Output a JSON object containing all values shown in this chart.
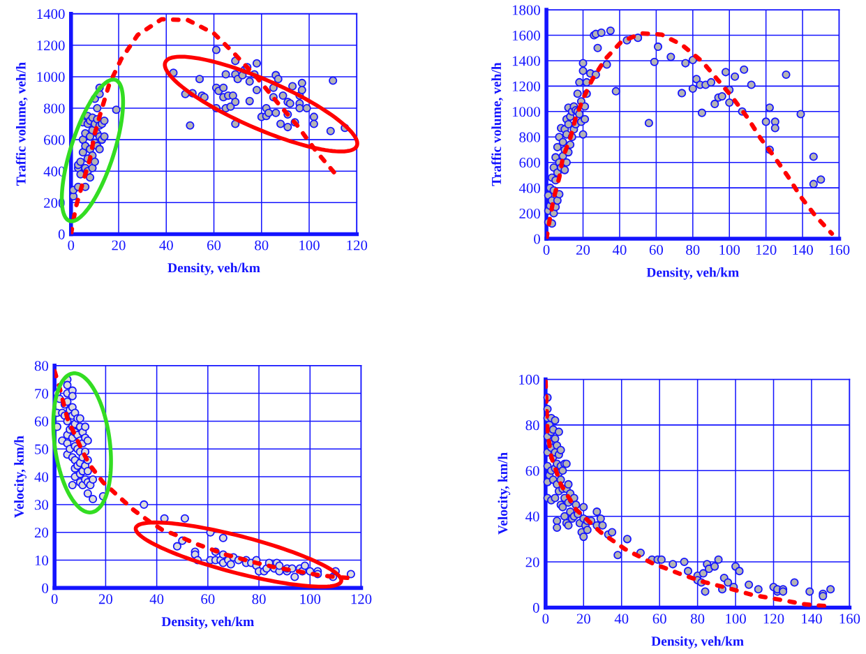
{
  "chart_data": [
    {
      "type": "scatter",
      "xlabel": "Density, veh/km",
      "ylabel": "Traffic volume, veh/h",
      "xlim": [
        0,
        120
      ],
      "ylim": [
        0,
        1400
      ],
      "xticks": [
        0,
        20,
        40,
        60,
        80,
        100,
        120
      ],
      "yticks": [
        0,
        200,
        400,
        600,
        800,
        1000,
        1200,
        1400
      ],
      "grid": true,
      "series": [
        {
          "marker": "circle",
          "color": "#b4b4b4",
          "x": [
            1,
            1,
            3,
            3,
            3,
            4,
            4,
            5,
            5,
            5,
            6,
            6,
            6,
            6,
            7,
            7,
            7,
            7,
            8,
            8,
            8,
            8,
            9,
            9,
            9,
            9,
            10,
            10,
            10,
            10,
            11,
            11,
            11,
            11,
            12,
            12,
            12,
            12,
            12,
            13,
            13,
            14,
            14,
            19,
            43,
            48,
            50,
            51,
            54,
            55,
            56,
            61,
            61,
            61,
            62,
            64,
            64,
            65,
            65,
            66,
            67,
            68,
            69,
            69,
            69,
            69,
            70,
            72,
            73,
            74,
            75,
            75,
            78,
            78,
            77,
            80,
            82,
            82,
            83,
            85,
            85,
            86,
            86,
            87,
            88,
            89,
            91,
            91,
            91,
            92,
            93,
            94,
            96,
            96,
            96,
            97,
            97,
            99,
            102,
            102,
            109,
            110,
            115
          ],
          "values": [
            240,
            280,
            300,
            420,
            440,
            380,
            460,
            600,
            520,
            710,
            300,
            420,
            560,
            640,
            400,
            480,
            700,
            750,
            360,
            540,
            620,
            720,
            420,
            500,
            660,
            740,
            460,
            580,
            700,
            860,
            560,
            640,
            800,
            730,
            540,
            620,
            690,
            890,
            930,
            600,
            700,
            620,
            720,
            790,
            1025,
            890,
            690,
            895,
            985,
            880,
            870,
            1170,
            930,
            800,
            910,
            930,
            870,
            1015,
            800,
            880,
            810,
            880,
            1100,
            700,
            1015,
            840,
            985,
            1010,
            1045,
            1060,
            970,
            845,
            1085,
            915,
            1015,
            745,
            800,
            750,
            770,
            930,
            870,
            1010,
            770,
            985,
            700,
            880,
            760,
            840,
            680,
            830,
            940,
            710,
            880,
            830,
            800,
            960,
            915,
            800,
            745,
            700,
            655,
            975,
            675
          ]
        },
        {
          "type": "line",
          "color": "#ff0000",
          "line_style": "dashed",
          "x": [
            0,
            2,
            5,
            8,
            10,
            13,
            16,
            21,
            28,
            38,
            49,
            60,
            69,
            78,
            87,
            95,
            103,
            112
          ],
          "values": [
            0,
            170,
            330,
            480,
            640,
            800,
            950,
            1110,
            1265,
            1365,
            1360,
            1275,
            1140,
            995,
            830,
            690,
            525,
            365
          ]
        }
      ]
    },
    {
      "type": "scatter",
      "xlabel": "Density, veh/km",
      "ylabel": "Traffic volume, veh/h",
      "xlim": [
        0,
        160
      ],
      "ylim": [
        0,
        1800
      ],
      "xticks": [
        0,
        20,
        40,
        60,
        80,
        100,
        120,
        140,
        160
      ],
      "yticks": [
        0,
        200,
        400,
        600,
        800,
        1000,
        1200,
        1400,
        1600,
        1800
      ],
      "grid": true,
      "series": [
        {
          "marker": "circle",
          "color": "#b4b4b4",
          "x": [
            1,
            1,
            1,
            2,
            2,
            3,
            3,
            3,
            4,
            4,
            4,
            5,
            5,
            5,
            6,
            6,
            6,
            7,
            7,
            7,
            8,
            8,
            9,
            9,
            10,
            10,
            10,
            11,
            11,
            11,
            12,
            12,
            12,
            13,
            13,
            14,
            14,
            15,
            15,
            16,
            16,
            17,
            17,
            18,
            18,
            19,
            19,
            20,
            20,
            20,
            21,
            21,
            22,
            22,
            24,
            26,
            27,
            28,
            27,
            30,
            33,
            35,
            38,
            44,
            50,
            56,
            59,
            61,
            68,
            74,
            76,
            80,
            80,
            82,
            84,
            85,
            87,
            90,
            92,
            94,
            96,
            98,
            100,
            100,
            103,
            107,
            108,
            112,
            120,
            122,
            122,
            125,
            125,
            131,
            139,
            146,
            146,
            150
          ],
          "values": [
            130,
            220,
            340,
            260,
            400,
            120,
            300,
            480,
            200,
            380,
            560,
            250,
            460,
            640,
            300,
            520,
            720,
            350,
            600,
            800,
            560,
            870,
            650,
            760,
            540,
            700,
            860,
            600,
            820,
            940,
            680,
            900,
            1030,
            740,
            960,
            800,
            1000,
            860,
            1040,
            900,
            1010,
            1000,
            1140,
            1230,
            980,
            920,
            1080,
            820,
            1320,
            1380,
            940,
            1040,
            1230,
            1140,
            1300,
            1600,
            1610,
            1500,
            1290,
            1620,
            1370,
            1635,
            1160,
            1560,
            1580,
            910,
            1390,
            1510,
            1430,
            1145,
            1380,
            1180,
            1405,
            1255,
            1210,
            990,
            1210,
            1230,
            1060,
            1110,
            1120,
            1310,
            1070,
            1170,
            1275,
            1000,
            1330,
            1210,
            920,
            1030,
            700,
            920,
            870,
            1290,
            980,
            645,
            430,
            465
          ]
        },
        {
          "type": "line",
          "color": "#ff0000",
          "line_style": "dashed",
          "x": [
            0,
            2,
            4,
            7,
            9,
            13,
            16,
            20,
            25,
            32,
            41,
            52,
            63,
            74,
            85,
            93,
            102,
            110,
            117,
            125,
            132,
            139,
            147,
            156
          ],
          "values": [
            0,
            170,
            320,
            480,
            640,
            790,
            950,
            1100,
            1250,
            1410,
            1550,
            1615,
            1605,
            1525,
            1395,
            1260,
            1105,
            950,
            790,
            635,
            490,
            330,
            180,
            40
          ]
        }
      ]
    },
    {
      "type": "scatter",
      "xlabel": "Density, veh/km",
      "ylabel": "Velocity, km/h",
      "xlim": [
        0,
        120
      ],
      "ylim": [
        0,
        80
      ],
      "xticks": [
        0,
        20,
        40,
        60,
        80,
        100,
        120
      ],
      "yticks": [
        0,
        10,
        20,
        30,
        40,
        50,
        60,
        70,
        80
      ],
      "grid": true,
      "series": [
        {
          "marker": "circle",
          "color": "#dcdcdc",
          "x": [
            1,
            1,
            1,
            2,
            3,
            3,
            4,
            4,
            5,
            5,
            5,
            5,
            5,
            5,
            5,
            5,
            6,
            6,
            6,
            7,
            7,
            7,
            7,
            7,
            7,
            7,
            7,
            8,
            8,
            8,
            8,
            8,
            8,
            8,
            9,
            9,
            9,
            9,
            10,
            10,
            10,
            10,
            10,
            10,
            10,
            11,
            11,
            11,
            11,
            11,
            12,
            12,
            12,
            12,
            12,
            13,
            13,
            13,
            13,
            13,
            14,
            15,
            15,
            19,
            35,
            43,
            48,
            50,
            51,
            55,
            55,
            56,
            61,
            61,
            63,
            63,
            65,
            66,
            66,
            66,
            68,
            69,
            70,
            72,
            75,
            75,
            77,
            79,
            79,
            80,
            82,
            83,
            84,
            86,
            87,
            88,
            88,
            91,
            91,
            93,
            94,
            96,
            97,
            98,
            100,
            103,
            103,
            109,
            110,
            116
          ],
          "values": [
            70,
            63,
            58,
            68,
            53,
            63,
            66,
            62,
            75,
            73,
            70,
            67,
            60,
            55,
            52,
            48,
            64,
            57,
            50,
            71,
            69,
            65,
            62,
            58,
            54,
            47,
            37,
            63,
            59,
            56,
            51,
            46,
            43,
            40,
            61,
            55,
            50,
            44,
            61,
            58,
            53,
            49,
            45,
            41,
            38,
            56,
            52,
            47,
            42,
            37,
            58,
            54,
            49,
            44,
            39,
            53,
            46,
            42,
            38,
            34,
            37,
            39,
            32,
            33,
            30,
            25,
            15,
            17,
            25,
            13,
            12,
            10,
            20,
            10,
            13,
            10,
            10,
            18,
            12,
            9,
            10,
            8.5,
            11,
            10,
            10,
            9,
            9,
            10,
            8,
            6,
            6,
            7,
            9,
            7,
            9,
            6,
            8,
            6,
            7,
            7,
            4,
            7,
            6,
            8,
            6,
            6,
            5,
            4,
            6,
            5
          ]
        },
        {
          "type": "line",
          "color": "#ff0000",
          "line_style": "dashed",
          "x": [
            0,
            2,
            5,
            8,
            11,
            14,
            19,
            25,
            31,
            37,
            42,
            49,
            55,
            61,
            67,
            73,
            79,
            86,
            92,
            98,
            104,
            110,
            116
          ],
          "values": [
            78,
            72,
            61,
            55,
            49,
            44,
            38,
            33,
            28,
            24,
            21,
            18.5,
            16,
            14,
            12,
            10.5,
            9,
            7.5,
            6.5,
            5.5,
            4.5,
            4,
            3.5
          ]
        }
      ]
    },
    {
      "type": "scatter",
      "xlabel": "Density, veh/km",
      "ylabel": "Velocity, km/h",
      "xlim": [
        0,
        160
      ],
      "ylim": [
        0,
        100
      ],
      "xticks": [
        0,
        20,
        40,
        60,
        80,
        100,
        120,
        140,
        160
      ],
      "yticks": [
        0,
        20,
        40,
        60,
        80,
        100
      ],
      "grid": true,
      "series": [
        {
          "marker": "circle",
          "color": "#b4b4b4",
          "x": [
            1,
            1,
            1,
            1,
            1,
            1,
            1,
            1,
            2,
            2,
            2,
            3,
            3,
            3,
            3,
            3,
            4,
            4,
            4,
            5,
            5,
            5,
            5,
            5,
            6,
            6,
            6,
            6,
            6,
            7,
            7,
            7,
            7,
            8,
            8,
            8,
            8,
            9,
            9,
            9,
            10,
            10,
            10,
            11,
            11,
            11,
            12,
            12,
            12,
            13,
            13,
            14,
            14,
            15,
            15,
            16,
            17,
            18,
            19,
            20,
            20,
            20,
            21,
            22,
            22,
            24,
            27,
            27,
            29,
            30,
            33,
            35,
            38,
            43,
            50,
            56,
            59,
            61,
            67,
            73,
            75,
            80,
            80,
            82,
            83,
            84,
            85,
            86,
            89,
            91,
            93,
            94,
            96,
            99,
            100,
            102,
            107,
            112,
            120,
            122,
            122,
            125,
            125,
            131,
            139,
            146,
            146,
            150
          ],
          "values": [
            92,
            87,
            83,
            75,
            68,
            62,
            55,
            48,
            80,
            72,
            58,
            83,
            77,
            70,
            60,
            47,
            78,
            66,
            56,
            82,
            74,
            68,
            61,
            48,
            71,
            63,
            54,
            38,
            35,
            77,
            67,
            59,
            51,
            69,
            62,
            56,
            45,
            60,
            52,
            44,
            63,
            48,
            40,
            63,
            52,
            37,
            54,
            46,
            36,
            50,
            42,
            47,
            39,
            48,
            40,
            45,
            41,
            37,
            33,
            44,
            39,
            31,
            36,
            38,
            34,
            38,
            42,
            36,
            39,
            36,
            32,
            33,
            23,
            30,
            24,
            21,
            21,
            21,
            19,
            20,
            16,
            14,
            12,
            11,
            15,
            7,
            19,
            17,
            18,
            21,
            8,
            13,
            11,
            9,
            18,
            16,
            10,
            8,
            9,
            7,
            8,
            8,
            7,
            11,
            7,
            6,
            5,
            8
          ]
        },
        {
          "type": "line",
          "color": "#ff0000",
          "line_style": "dashed",
          "x": [
            0,
            0.5,
            1,
            3,
            8,
            16,
            29,
            42,
            56,
            70,
            82,
            96,
            109,
            123,
            136,
            149
          ],
          "values": [
            99,
            88,
            77,
            66,
            54,
            43,
            33,
            25.5,
            19.5,
            15,
            11.5,
            8.5,
            5.5,
            3.5,
            1.5,
            0.5
          ]
        }
      ]
    }
  ]
}
